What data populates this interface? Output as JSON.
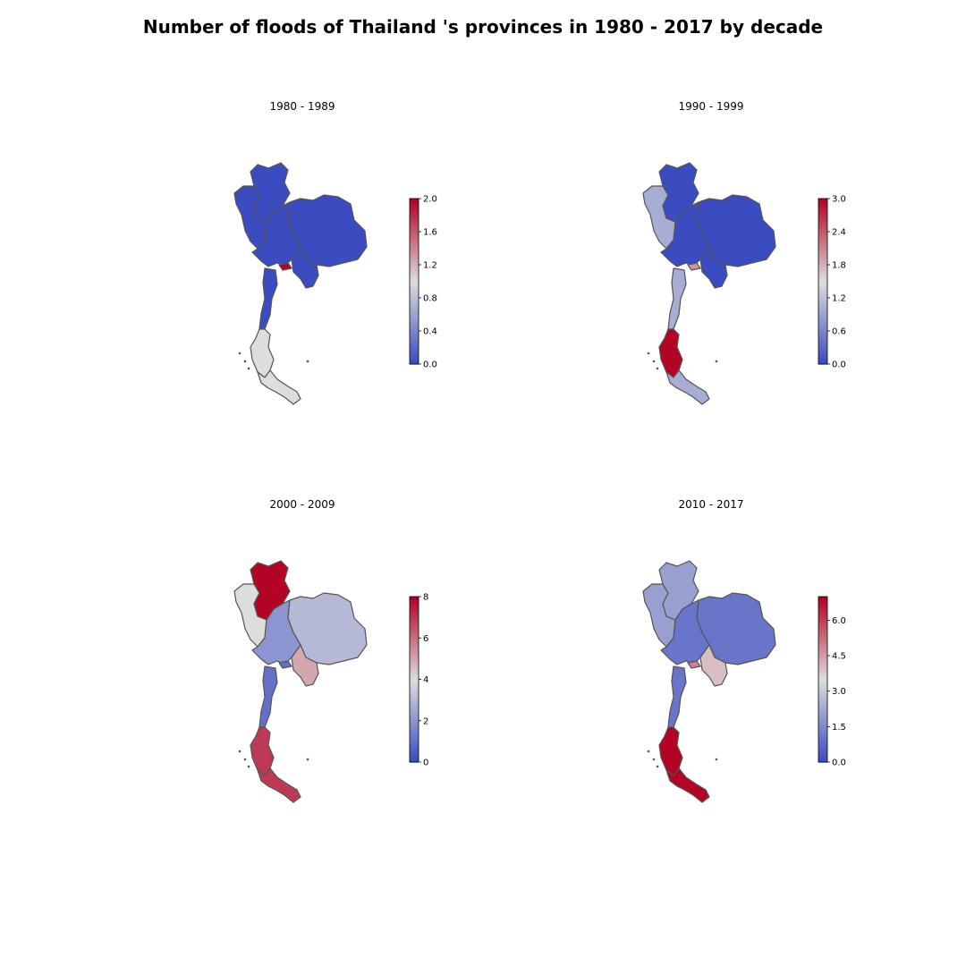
{
  "title": "Number of floods of Thailand 's provinces in 1980 - 2017 by decade",
  "colormap": "coolwarm",
  "colors": {
    "low": "#3b4cc0",
    "mid": "#dddddd",
    "high": "#b40426",
    "border": "#555555"
  },
  "panels": [
    {
      "title": "1980 - 1989",
      "scale": {
        "min": 0.0,
        "max": 2.0,
        "ticks": [
          "0.0",
          "0.4",
          "0.8",
          "1.2",
          "1.6",
          "2.0"
        ]
      },
      "regions": {
        "north": 0,
        "northwest": 0,
        "central": 0,
        "northeast": 0,
        "east": 0,
        "bangkok": 2,
        "isthmus": 0,
        "south_upper": 1,
        "south_lower": 1
      }
    },
    {
      "title": "1990 - 1999",
      "scale": {
        "min": 0.0,
        "max": 3.0,
        "ticks": [
          "0.0",
          "0.6",
          "1.2",
          "1.8",
          "2.4",
          "3.0"
        ]
      },
      "regions": {
        "north": 0,
        "northwest": 1,
        "central": 0,
        "northeast": 0,
        "east": 0,
        "bangkok": 2,
        "isthmus": 1,
        "south_upper": 3,
        "south_lower": 1
      }
    },
    {
      "title": "2000 - 2009",
      "scale": {
        "min": 0,
        "max": 8,
        "ticks": [
          "0",
          "2",
          "4",
          "6",
          "8"
        ]
      },
      "regions": {
        "north": 8,
        "northwest": 4,
        "central": 2,
        "northeast": 3,
        "east": 5,
        "bangkok": 1,
        "isthmus": 1,
        "south_upper": 7,
        "south_lower": 7
      }
    },
    {
      "title": "2010 - 2017",
      "scale": {
        "min": 0.0,
        "max": 7.0,
        "ticks": [
          "0.0",
          "1.5",
          "3.0",
          "4.5",
          "6.0"
        ]
      },
      "regions": {
        "north": 2,
        "northwest": 2,
        "central": 1,
        "northeast": 1,
        "east": 4,
        "bangkok": 5,
        "isthmus": 1,
        "south_upper": 7,
        "south_lower": 7
      }
    }
  ]
}
